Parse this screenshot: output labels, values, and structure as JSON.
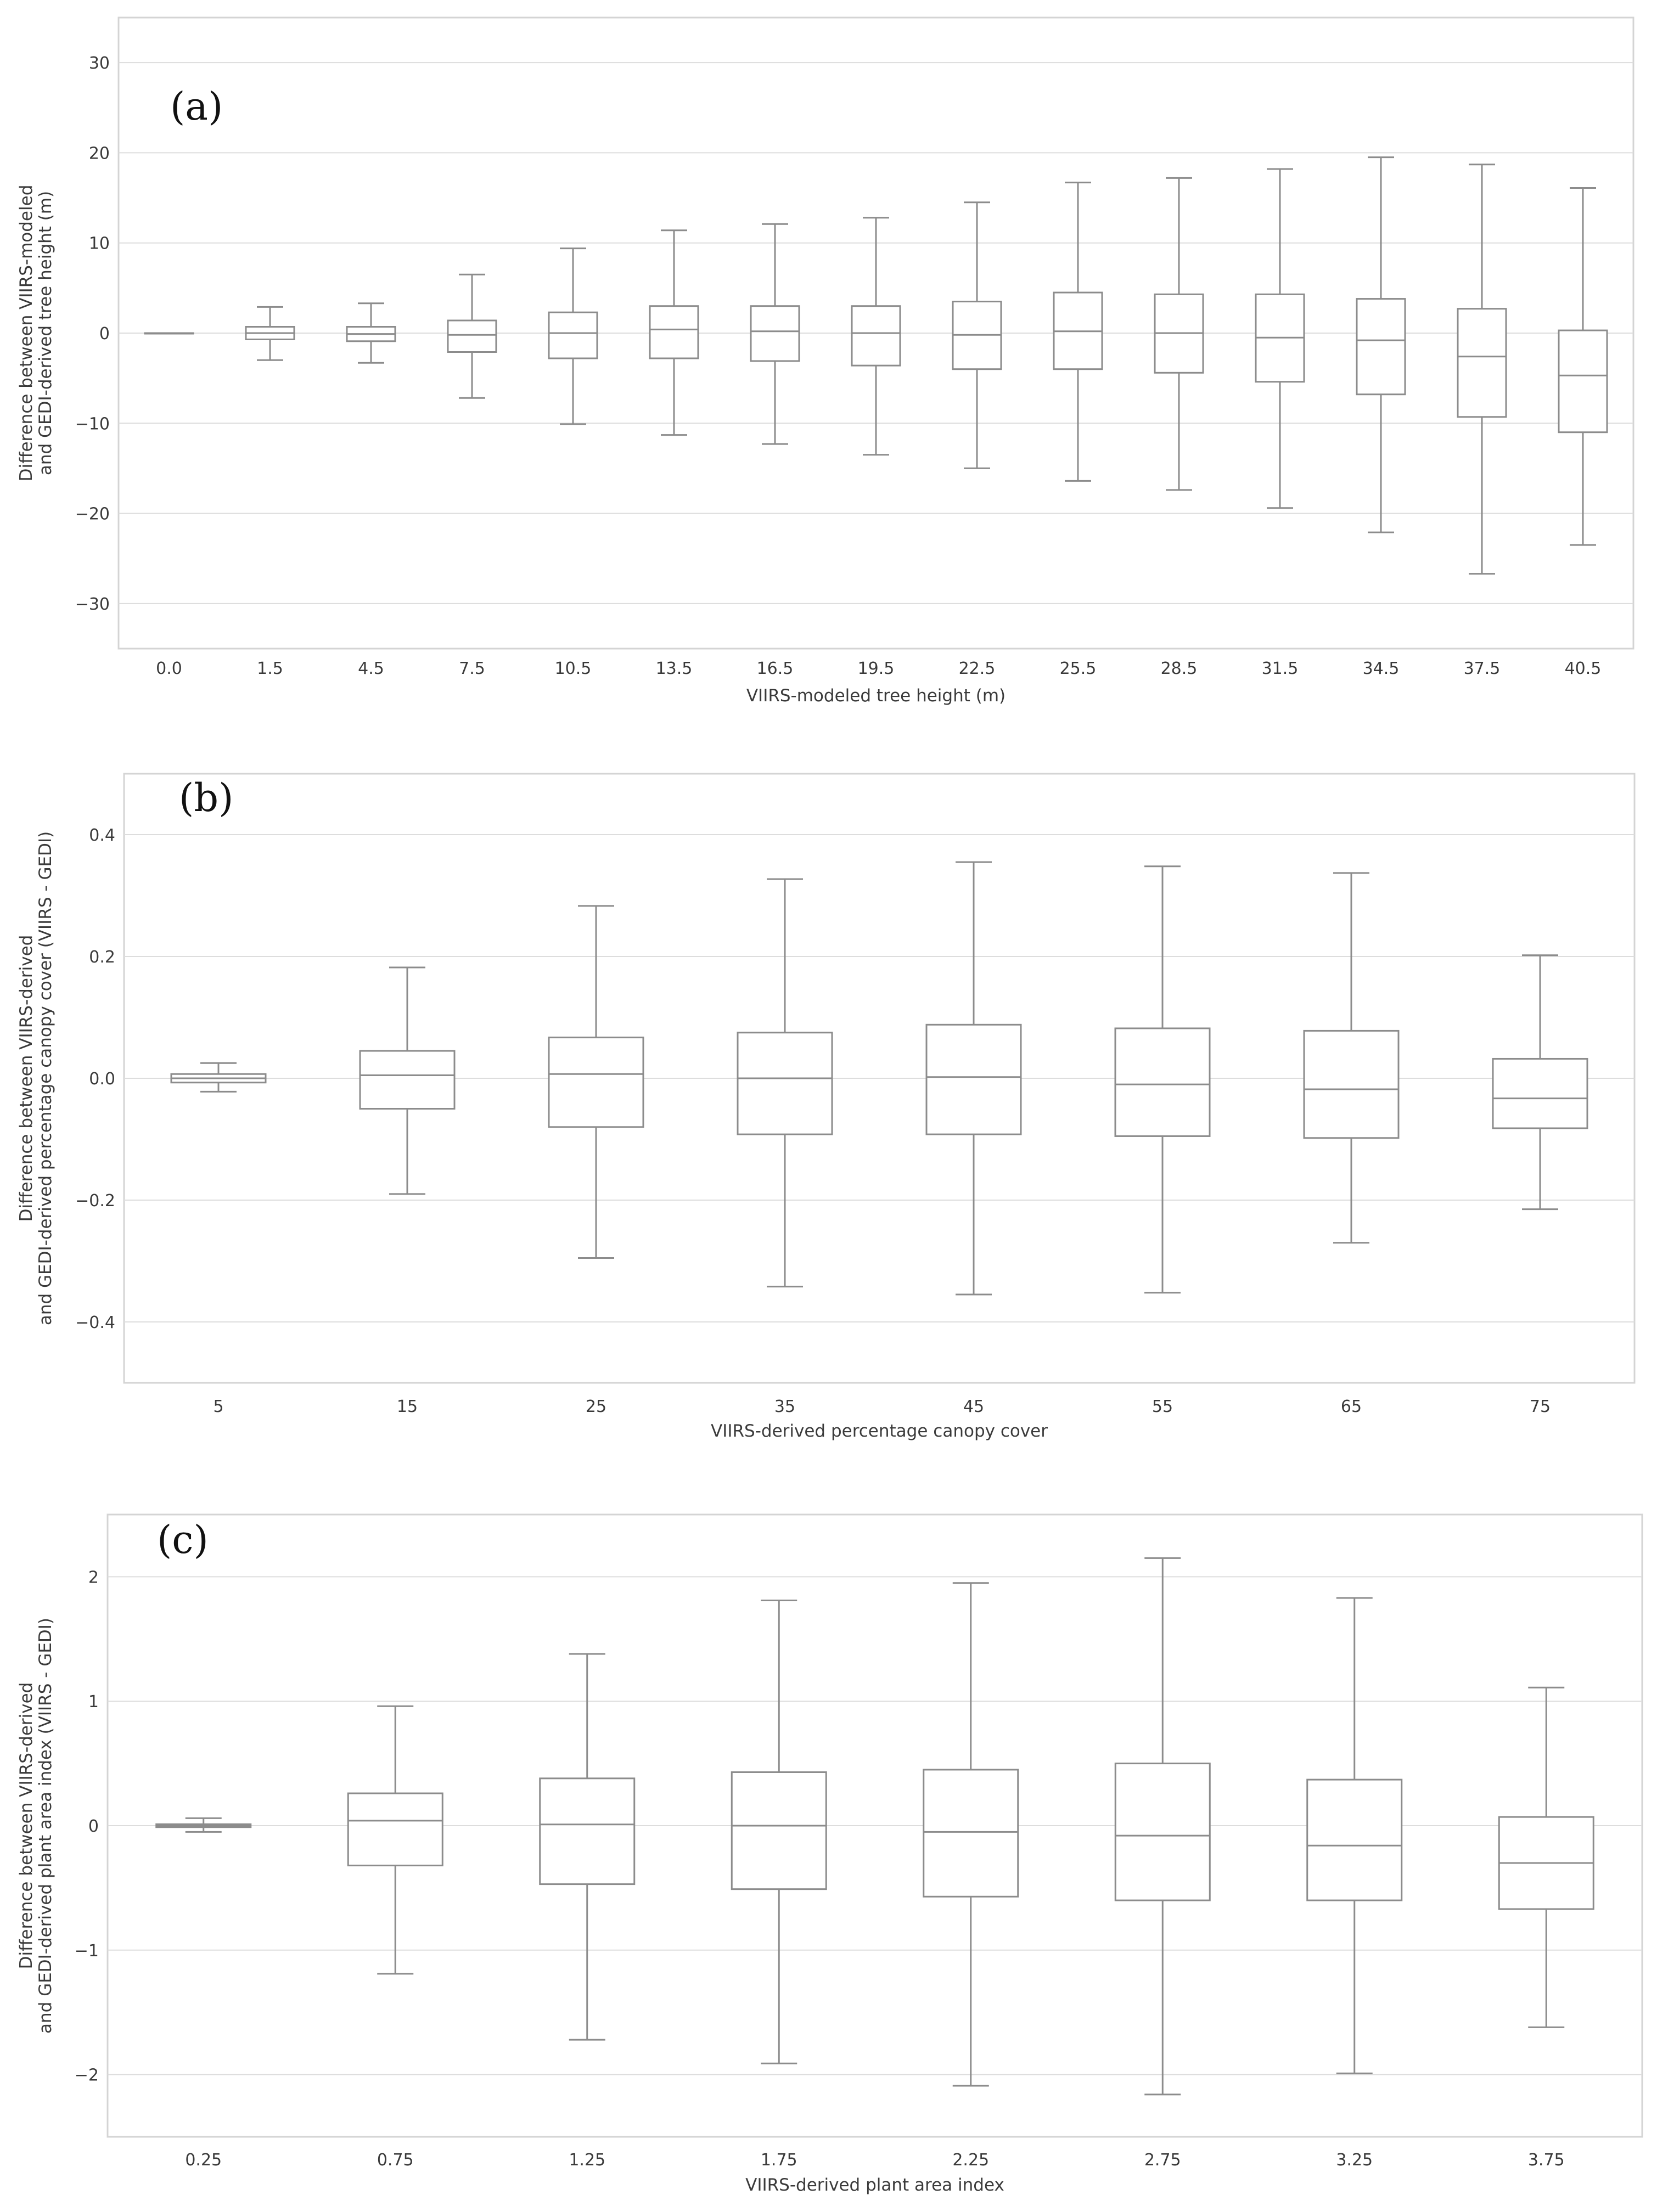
{
  "chart_data": [
    {
      "type": "box",
      "panel_label": "(a)",
      "xlabel": "VIIRS-modeled tree height (m)",
      "ylabel_lines": [
        "Difference between VIIRS-modeled",
        "and GEDI-derived tree height (m)"
      ],
      "ylim": [
        -35,
        35
      ],
      "yticks": [
        -30,
        -20,
        -10,
        0,
        10,
        20,
        30
      ],
      "ytick_labels": [
        "−30",
        "−20",
        "−10",
        "0",
        "10",
        "20",
        "30"
      ],
      "grid": true,
      "categories": [
        "0.0",
        "1.5",
        "4.5",
        "7.5",
        "10.5",
        "13.5",
        "16.5",
        "19.5",
        "22.5",
        "25.5",
        "28.5",
        "31.5",
        "34.5",
        "37.5",
        "40.5"
      ],
      "boxes": [
        {
          "whislo": 0,
          "q1": 0,
          "med": 0,
          "q3": 0,
          "whishi": 0
        },
        {
          "whislo": -3.0,
          "q1": -0.7,
          "med": 0.0,
          "q3": 0.7,
          "whishi": 2.9
        },
        {
          "whislo": -3.3,
          "q1": -0.9,
          "med": -0.1,
          "q3": 0.7,
          "whishi": 3.3
        },
        {
          "whislo": -7.2,
          "q1": -2.1,
          "med": -0.2,
          "q3": 1.4,
          "whishi": 6.5
        },
        {
          "whislo": -10.1,
          "q1": -2.8,
          "med": 0.0,
          "q3": 2.3,
          "whishi": 9.4
        },
        {
          "whislo": -11.3,
          "q1": -2.8,
          "med": 0.4,
          "q3": 3.0,
          "whishi": 11.4
        },
        {
          "whislo": -12.3,
          "q1": -3.1,
          "med": 0.2,
          "q3": 3.0,
          "whishi": 12.1
        },
        {
          "whislo": -13.5,
          "q1": -3.6,
          "med": 0.0,
          "q3": 3.0,
          "whishi": 12.8
        },
        {
          "whislo": -15.0,
          "q1": -4.0,
          "med": -0.2,
          "q3": 3.5,
          "whishi": 14.5
        },
        {
          "whislo": -16.4,
          "q1": -4.0,
          "med": 0.2,
          "q3": 4.5,
          "whishi": 16.7
        },
        {
          "whislo": -17.4,
          "q1": -4.4,
          "med": 0.0,
          "q3": 4.3,
          "whishi": 17.2
        },
        {
          "whislo": -19.4,
          "q1": -5.4,
          "med": -0.5,
          "q3": 4.3,
          "whishi": 18.2
        },
        {
          "whislo": -22.1,
          "q1": -6.8,
          "med": -0.8,
          "q3": 3.8,
          "whishi": 19.5
        },
        {
          "whislo": -26.7,
          "q1": -9.3,
          "med": -2.6,
          "q3": 2.7,
          "whishi": 18.7
        },
        {
          "whislo": -23.5,
          "q1": -11.0,
          "med": -4.7,
          "q3": 0.3,
          "whishi": 16.1
        }
      ]
    },
    {
      "type": "box",
      "panel_label": "(b)",
      "xlabel": "VIIRS-derived percentage canopy cover",
      "ylabel_lines": [
        "Difference between VIIRS-derived",
        "and GEDI-derived percentage canopy cover (VIIRS - GEDI)"
      ],
      "ylim": [
        -0.5,
        0.5
      ],
      "yticks": [
        -0.4,
        -0.2,
        0.0,
        0.2,
        0.4
      ],
      "ytick_labels": [
        "−0.4",
        "−0.2",
        "0.0",
        "0.2",
        "0.4"
      ],
      "grid": true,
      "categories": [
        "5",
        "15",
        "25",
        "35",
        "45",
        "55",
        "65",
        "75"
      ],
      "boxes": [
        {
          "whislo": -0.022,
          "q1": -0.007,
          "med": 0.0,
          "q3": 0.007,
          "whishi": 0.025
        },
        {
          "whislo": -0.19,
          "q1": -0.05,
          "med": 0.005,
          "q3": 0.045,
          "whishi": 0.182
        },
        {
          "whislo": -0.295,
          "q1": -0.08,
          "med": 0.007,
          "q3": 0.067,
          "whishi": 0.283
        },
        {
          "whislo": -0.342,
          "q1": -0.092,
          "med": 0.0,
          "q3": 0.075,
          "whishi": 0.327
        },
        {
          "whislo": -0.355,
          "q1": -0.092,
          "med": 0.002,
          "q3": 0.088,
          "whishi": 0.355
        },
        {
          "whislo": -0.352,
          "q1": -0.095,
          "med": -0.01,
          "q3": 0.082,
          "whishi": 0.348
        },
        {
          "whislo": -0.27,
          "q1": -0.098,
          "med": -0.018,
          "q3": 0.078,
          "whishi": 0.337
        },
        {
          "whislo": -0.215,
          "q1": -0.082,
          "med": -0.033,
          "q3": 0.032,
          "whishi": 0.202
        }
      ]
    },
    {
      "type": "box",
      "panel_label": "(c)",
      "xlabel": "VIIRS-derived plant area index",
      "ylabel_lines": [
        "Difference between VIIRS-derived",
        "and GEDI-derived plant area index (VIIRS - GEDI)"
      ],
      "ylim": [
        -2.5,
        2.5
      ],
      "yticks": [
        -2,
        -1,
        0,
        1,
        2
      ],
      "ytick_labels": [
        "−2",
        "−1",
        "0",
        "1",
        "2"
      ],
      "grid": true,
      "categories": [
        "0.25",
        "0.75",
        "1.25",
        "1.75",
        "2.25",
        "2.75",
        "3.25",
        "3.75"
      ],
      "boxes": [
        {
          "whislo": -0.05,
          "q1": -0.012,
          "med": 0.0,
          "q3": 0.012,
          "whishi": 0.06
        },
        {
          "whislo": -1.19,
          "q1": -0.32,
          "med": 0.04,
          "q3": 0.26,
          "whishi": 0.96
        },
        {
          "whislo": -1.72,
          "q1": -0.47,
          "med": 0.01,
          "q3": 0.38,
          "whishi": 1.38
        },
        {
          "whislo": -1.91,
          "q1": -0.51,
          "med": 0.0,
          "q3": 0.43,
          "whishi": 1.81
        },
        {
          "whislo": -2.09,
          "q1": -0.57,
          "med": -0.05,
          "q3": 0.45,
          "whishi": 1.95
        },
        {
          "whislo": -2.16,
          "q1": -0.6,
          "med": -0.08,
          "q3": 0.5,
          "whishi": 2.15
        },
        {
          "whislo": -1.99,
          "q1": -0.6,
          "med": -0.16,
          "q3": 0.37,
          "whishi": 1.83
        },
        {
          "whislo": -1.62,
          "q1": -0.67,
          "med": -0.3,
          "q3": 0.07,
          "whishi": 1.11
        }
      ]
    }
  ]
}
